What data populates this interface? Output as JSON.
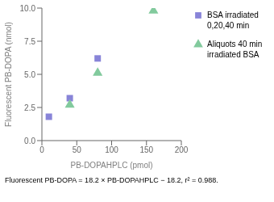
{
  "chart_data": {
    "type": "scatter",
    "xlabel": "PB-DOPAHPLC (pmol)",
    "ylabel": "Fluorescent PB-DOPA (nmol)",
    "annotations": [
      "Fluorescent PB-DOPA = 18.2 × PB-DOPAHPLC − 18.2, r² = 0.988."
    ],
    "series": [
      {
        "name": "BSA irradiated\n0,20,40 min",
        "marker": "square",
        "color": "#8884d8",
        "x": [
          10,
          40,
          80
        ],
        "values": [
          1.8,
          3.2,
          6.2
        ]
      },
      {
        "name": "Aliquots 40 min\nirradiated BSA",
        "marker": "triangle",
        "color": "#82ca9d",
        "x": [
          40,
          80,
          160
        ],
        "values": [
          2.7,
          5.1,
          9.8
        ]
      }
    ],
    "xlim": [
      0,
      200
    ],
    "ylim": [
      0,
      10
    ],
    "xticks": [
      0,
      50,
      100,
      150,
      200
    ],
    "yticks": [
      {
        "value": 0,
        "label": "0.0"
      },
      {
        "value": 2.5,
        "label": "2.5"
      },
      {
        "value": 5.0,
        "label": "5.0"
      },
      {
        "value": 7.5,
        "label": "7.5"
      },
      {
        "value": 10,
        "label": "10.0"
      }
    ],
    "grid": false,
    "legend": "right"
  }
}
